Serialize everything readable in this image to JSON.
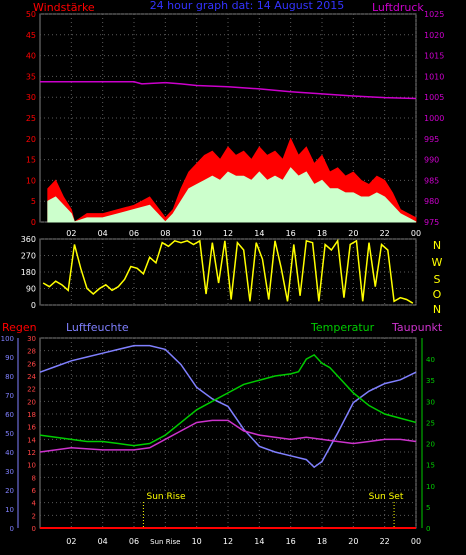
{
  "header": {
    "left_label": "Windstärke",
    "title": "24 hour graph dat: 14 August 2015",
    "right_label": "Luftdruck"
  },
  "compass": [
    "N",
    "W",
    "S",
    "O",
    "N"
  ],
  "middle_labels": {
    "regen": "Regen",
    "luftfeuchte": "Luftfeuchte",
    "temperatur": "Temperatur",
    "taupunkt": "Taupunkt"
  },
  "annotations": {
    "sun_rise": "Sun Rise",
    "sun_set": "Sun Set"
  },
  "x_ticks": [
    "02",
    "04",
    "06",
    "08",
    "10",
    "12",
    "14",
    "16",
    "18",
    "20",
    "22",
    "00"
  ],
  "bottom_x_ticks": [
    "02",
    "04",
    "06",
    "Sun Rise",
    "10",
    "12",
    "14",
    "16",
    "18",
    "20",
    "22",
    "00"
  ],
  "colors": {
    "wind_gust": "#ff0000",
    "wind_avg": "#ccffcc",
    "pressure": "#cc00cc",
    "direction": "#ffff00",
    "humidity": "#8080ff",
    "temperature": "#00cc00",
    "dewpoint": "#cc33cc",
    "rain": "#ff0000",
    "sun_marker": "#ffff00"
  },
  "chart_data": [
    {
      "type": "area",
      "ylim_left": [
        0,
        50
      ],
      "left_ticks": [
        0,
        5,
        10,
        15,
        20,
        25,
        30,
        35,
        40,
        45,
        50
      ],
      "ylim_right": [
        975,
        1025
      ],
      "right_ticks": [
        975,
        980,
        985,
        990,
        995,
        1000,
        1005,
        1010,
        1015,
        1020,
        1025
      ],
      "series": [
        {
          "name": "Windstärke",
          "x": [
            0.5,
            1.0,
            1.5,
            2.0,
            2.2,
            3.0,
            4.0,
            5.0,
            6.0,
            7.0,
            8.0,
            8.5,
            9.0,
            9.5,
            10.0,
            10.5,
            11.0,
            11.5,
            12.0,
            12.5,
            13.0,
            13.5,
            14.0,
            14.5,
            15.0,
            15.5,
            16.0,
            16.5,
            17.0,
            17.5,
            18.0,
            18.5,
            19.0,
            19.5,
            20.0,
            20.5,
            21.0,
            21.5,
            22.0,
            22.5,
            23.0,
            23.5,
            24.0
          ],
          "values": [
            8,
            10,
            6,
            3,
            0,
            2,
            2,
            3,
            4,
            6,
            1,
            3,
            8,
            12,
            14,
            16,
            17,
            15,
            18,
            16,
            17,
            15,
            18,
            16,
            17,
            15,
            20,
            16,
            18,
            14,
            16,
            12,
            13,
            11,
            12,
            10,
            9,
            11,
            10,
            7,
            3,
            2,
            1
          ]
        },
        {
          "name": "Windstärke avg",
          "x": [
            0.5,
            1.0,
            1.5,
            2.0,
            2.2,
            3.0,
            4.0,
            5.0,
            6.0,
            7.0,
            8.0,
            8.5,
            9.0,
            9.5,
            10.0,
            10.5,
            11.0,
            11.5,
            12.0,
            12.5,
            13.0,
            13.5,
            14.0,
            14.5,
            15.0,
            15.5,
            16.0,
            16.5,
            17.0,
            17.5,
            18.0,
            18.5,
            19.0,
            19.5,
            20.0,
            20.5,
            21.0,
            21.5,
            22.0,
            22.5,
            23.0,
            23.5,
            24.0
          ],
          "values": [
            5,
            6,
            4,
            2,
            0,
            1,
            1,
            2,
            3,
            4,
            0,
            2,
            5,
            8,
            9,
            10,
            11,
            10,
            12,
            11,
            11,
            10,
            12,
            10,
            11,
            10,
            13,
            11,
            12,
            9,
            10,
            8,
            8,
            7,
            7,
            6,
            6,
            7,
            6,
            4,
            2,
            1,
            0
          ]
        },
        {
          "name": "Luftdruck",
          "x": [
            0,
            6,
            6.5,
            8,
            9,
            10,
            12,
            14,
            16,
            18,
            20,
            22,
            24
          ],
          "values": [
            1008.7,
            1008.7,
            1008.2,
            1008.5,
            1008.2,
            1007.8,
            1007.5,
            1007.0,
            1006.3,
            1005.8,
            1005.3,
            1004.9,
            1004.7
          ]
        }
      ]
    },
    {
      "type": "scatter",
      "ylim": [
        0,
        360
      ],
      "ticks": [
        0,
        90,
        180,
        270,
        360
      ],
      "series": [
        {
          "name": "Windrichtung",
          "x": [
            0.2,
            0.6,
            1.0,
            1.4,
            1.8,
            2.2,
            2.6,
            3.0,
            3.4,
            3.8,
            4.2,
            4.6,
            5.0,
            5.4,
            5.8,
            6.2,
            6.6,
            7.0,
            7.4,
            7.8,
            8.2,
            8.6,
            9.0,
            9.4,
            9.8,
            10.2,
            10.6,
            11.0,
            11.4,
            11.8,
            12.2,
            12.6,
            13.0,
            13.4,
            13.8,
            14.2,
            14.6,
            15.0,
            15.4,
            15.8,
            16.2,
            16.6,
            17.0,
            17.4,
            17.8,
            18.2,
            18.6,
            19.0,
            19.4,
            19.8,
            20.2,
            20.6,
            21.0,
            21.4,
            21.8,
            22.2,
            22.6,
            23.0,
            23.4,
            23.8
          ],
          "values": [
            120,
            100,
            130,
            110,
            80,
            330,
            200,
            90,
            60,
            90,
            110,
            80,
            100,
            140,
            210,
            200,
            170,
            260,
            230,
            340,
            320,
            350,
            340,
            350,
            330,
            350,
            60,
            340,
            120,
            350,
            30,
            340,
            300,
            20,
            340,
            250,
            30,
            350,
            200,
            20,
            330,
            50,
            350,
            340,
            20,
            330,
            300,
            350,
            40,
            330,
            350,
            20,
            340,
            100,
            330,
            300,
            20,
            40,
            30,
            10
          ]
        }
      ]
    },
    {
      "type": "line",
      "ylim_regen": [
        0,
        30
      ],
      "regen_ticks": [
        0,
        2,
        4,
        6,
        8,
        10,
        12,
        14,
        16,
        18,
        20,
        22,
        24,
        26,
        28,
        30
      ],
      "ylim_humidity": [
        0,
        100
      ],
      "humidity_ticks": [
        0,
        10,
        20,
        30,
        40,
        50,
        60,
        70,
        80,
        90,
        100
      ],
      "ylim_temperature": [
        0,
        45
      ],
      "temperature_ticks": [
        0,
        5,
        10,
        15,
        20,
        25,
        30,
        35,
        40
      ],
      "series": [
        {
          "name": "Luftfeuchte",
          "x": [
            0,
            1,
            2,
            3,
            4,
            5,
            6,
            7,
            8,
            9,
            10,
            11,
            12,
            13,
            14,
            15,
            16,
            17,
            17.5,
            18,
            19,
            20,
            21,
            22,
            23,
            24
          ],
          "values": [
            82,
            85,
            88,
            90,
            92,
            94,
            96,
            96,
            94,
            86,
            74,
            68,
            64,
            52,
            43,
            40,
            38,
            36,
            32,
            35,
            50,
            66,
            72,
            76,
            78,
            82
          ]
        },
        {
          "name": "Temperatur",
          "x": [
            0,
            1,
            2,
            3,
            4,
            5,
            6,
            7,
            8,
            9,
            10,
            11,
            12,
            13,
            14,
            15,
            16,
            16.5,
            17,
            17.5,
            18,
            18.5,
            19,
            20,
            21,
            22,
            23,
            24
          ],
          "values": [
            22,
            21.5,
            21,
            20.5,
            20.5,
            20,
            19.5,
            20,
            22,
            25,
            28,
            30,
            32,
            34,
            35,
            36,
            36.5,
            37,
            40,
            41,
            39,
            38,
            36,
            32,
            29,
            27,
            26,
            25
          ]
        },
        {
          "name": "Taupunkt",
          "x": [
            0,
            2,
            4,
            6,
            7,
            8,
            9,
            10,
            11,
            12,
            13,
            14,
            15,
            16,
            17,
            18,
            19,
            20,
            21,
            22,
            23,
            24
          ],
          "values": [
            18,
            19,
            18.5,
            18.5,
            19,
            21,
            23,
            25,
            25.5,
            25.5,
            23,
            22,
            21.5,
            21,
            21.5,
            21,
            20.5,
            20,
            20.5,
            21,
            21,
            20.5
          ]
        },
        {
          "name": "Regen",
          "x": [
            0,
            24
          ],
          "values": [
            0,
            0
          ]
        }
      ],
      "markers": [
        {
          "label": "Sun Rise",
          "x": 6.6
        },
        {
          "label": "Sun Set",
          "x": 22.6
        }
      ]
    }
  ]
}
